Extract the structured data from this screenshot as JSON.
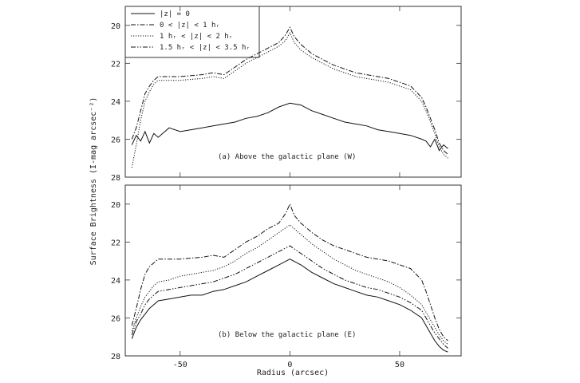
{
  "chart_data": {
    "type": "line",
    "xlabel": "Radius (arcsec)",
    "ylabel": "Surface Brightness (I-mag arcsec⁻²)",
    "xlim": [
      -75,
      78
    ],
    "x_ticks": [
      "-50",
      "0",
      "50"
    ],
    "x_tick_values": [
      -50,
      0,
      50
    ],
    "y_ticks": [
      "20",
      "22",
      "24",
      "26",
      "28"
    ],
    "y_tick_values": [
      20,
      22,
      24,
      26,
      28
    ],
    "legend_position": "top-left",
    "legend": [
      {
        "label": "|z| = 0",
        "dash": "solid"
      },
      {
        "label": "0 < |z| < 1 hᵣ",
        "dash": "dashdot"
      },
      {
        "label": "1 hᵣ < |z| < 2 hᵣ",
        "dash": "dotted"
      },
      {
        "label": "1.5 hᵣ < |z| < 3.5 hᵣ",
        "dash": "dashdotdot"
      }
    ],
    "panels": [
      {
        "label": "(a) Above the galactic plane (W)",
        "ylim": [
          19,
          28
        ],
        "series": [
          {
            "dash": "dashdot",
            "x": [
              -72,
              -70,
              -68,
              -66,
              -64,
              -62,
              -60,
              -55,
              -50,
              -45,
              -40,
              -35,
              -30,
              -25,
              -20,
              -15,
              -10,
              -5,
              -2,
              0,
              2,
              5,
              10,
              15,
              20,
              25,
              30,
              35,
              40,
              45,
              50,
              55,
              60,
              62,
              64,
              66,
              68,
              70,
              72
            ],
            "y": [
              26.0,
              25.4,
              24.5,
              23.6,
              23.2,
              22.9,
              22.7,
              22.7,
              22.7,
              22.65,
              22.6,
              22.5,
              22.6,
              22.2,
              21.8,
              21.5,
              21.2,
              20.9,
              20.5,
              20.1,
              20.6,
              21.0,
              21.5,
              21.8,
              22.1,
              22.3,
              22.5,
              22.6,
              22.7,
              22.8,
              23.0,
              23.2,
              23.8,
              24.3,
              24.9,
              25.5,
              26.2,
              26.6,
              26.8
            ]
          },
          {
            "dash": "dotted",
            "x": [
              -72,
              -70,
              -68,
              -66,
              -64,
              -62,
              -60,
              -55,
              -50,
              -45,
              -40,
              -35,
              -30,
              -25,
              -20,
              -15,
              -10,
              -5,
              -2,
              0,
              2,
              5,
              10,
              15,
              20,
              25,
              30,
              35,
              40,
              45,
              50,
              55,
              60,
              62,
              64,
              66,
              68,
              70,
              72
            ],
            "y": [
              27.5,
              26.3,
              25.0,
              24.0,
              23.5,
              23.1,
              22.9,
              22.9,
              22.9,
              22.85,
              22.8,
              22.7,
              22.8,
              22.4,
              22.0,
              21.7,
              21.4,
              21.1,
              20.8,
              20.4,
              20.9,
              21.3,
              21.7,
              22.0,
              22.3,
              22.5,
              22.7,
              22.8,
              22.9,
              23.0,
              23.2,
              23.4,
              24.0,
              24.5,
              25.1,
              25.7,
              26.4,
              26.8,
              27.0
            ]
          },
          {
            "dash": "solid",
            "x": [
              -72,
              -70,
              -68,
              -66,
              -64,
              -62,
              -60,
              -55,
              -50,
              -45,
              -40,
              -35,
              -30,
              -25,
              -20,
              -15,
              -10,
              -5,
              0,
              5,
              10,
              15,
              20,
              25,
              30,
              35,
              40,
              45,
              50,
              55,
              60,
              62,
              64,
              66,
              68,
              70,
              72
            ],
            "y": [
              26.3,
              25.8,
              26.1,
              25.6,
              26.2,
              25.7,
              25.9,
              25.4,
              25.6,
              25.5,
              25.4,
              25.3,
              25.2,
              25.1,
              24.9,
              24.8,
              24.6,
              24.3,
              24.1,
              24.2,
              24.5,
              24.7,
              24.9,
              25.1,
              25.2,
              25.3,
              25.5,
              25.6,
              25.7,
              25.8,
              26.0,
              26.1,
              26.4,
              26.0,
              26.6,
              26.3,
              26.5
            ]
          }
        ]
      },
      {
        "label": "(b) Below the galactic plane (E)",
        "ylim": [
          19,
          28
        ],
        "series": [
          {
            "dash": "dashdot",
            "x": [
              -72,
              -70,
              -68,
              -66,
              -64,
              -62,
              -60,
              -55,
              -50,
              -45,
              -40,
              -35,
              -30,
              -25,
              -20,
              -15,
              -10,
              -5,
              -2,
              0,
              2,
              5,
              10,
              15,
              20,
              25,
              30,
              35,
              40,
              45,
              50,
              55,
              60,
              62,
              64,
              66,
              68,
              70,
              72
            ],
            "y": [
              26.4,
              25.5,
              24.5,
              23.7,
              23.3,
              23.1,
              22.9,
              22.9,
              22.9,
              22.85,
              22.8,
              22.7,
              22.8,
              22.4,
              22.0,
              21.7,
              21.3,
              21.0,
              20.5,
              20.0,
              20.6,
              21.0,
              21.5,
              21.9,
              22.2,
              22.4,
              22.6,
              22.8,
              22.9,
              23.0,
              23.2,
              23.4,
              24.0,
              24.6,
              25.3,
              26.0,
              26.6,
              27.0,
              27.2
            ]
          },
          {
            "dash": "dotted",
            "x": [
              -72,
              -70,
              -68,
              -66,
              -64,
              -62,
              -60,
              -55,
              -50,
              -45,
              -40,
              -35,
              -30,
              -25,
              -20,
              -15,
              -10,
              -5,
              0,
              5,
              10,
              15,
              20,
              25,
              30,
              35,
              40,
              45,
              50,
              55,
              60,
              62,
              64,
              66,
              68,
              70,
              72
            ],
            "y": [
              26.7,
              26.0,
              25.4,
              24.9,
              24.6,
              24.3,
              24.1,
              24.0,
              23.8,
              23.7,
              23.6,
              23.5,
              23.3,
              23.0,
              22.6,
              22.3,
              21.9,
              21.5,
              21.1,
              21.6,
              22.1,
              22.5,
              22.9,
              23.2,
              23.5,
              23.7,
              23.9,
              24.1,
              24.4,
              24.8,
              25.3,
              25.7,
              26.1,
              26.5,
              26.9,
              27.2,
              27.4
            ]
          },
          {
            "dash": "dashdotdot",
            "x": [
              -72,
              -70,
              -68,
              -66,
              -64,
              -62,
              -60,
              -55,
              -50,
              -45,
              -40,
              -35,
              -30,
              -25,
              -20,
              -15,
              -10,
              -5,
              0,
              5,
              10,
              15,
              20,
              25,
              30,
              35,
              40,
              45,
              50,
              55,
              60,
              62,
              64,
              66,
              68,
              70,
              72
            ],
            "y": [
              26.9,
              26.2,
              25.8,
              25.3,
              25.0,
              24.8,
              24.6,
              24.5,
              24.4,
              24.3,
              24.2,
              24.1,
              23.9,
              23.7,
              23.4,
              23.1,
              22.8,
              22.5,
              22.2,
              22.6,
              23.0,
              23.4,
              23.7,
              24.0,
              24.2,
              24.4,
              24.5,
              24.7,
              24.9,
              25.2,
              25.6,
              26.0,
              26.4,
              26.8,
              27.1,
              27.4,
              27.6
            ]
          },
          {
            "dash": "solid",
            "x": [
              -72,
              -70,
              -68,
              -66,
              -64,
              -62,
              -60,
              -55,
              -50,
              -45,
              -40,
              -35,
              -30,
              -25,
              -20,
              -15,
              -10,
              -5,
              0,
              5,
              10,
              15,
              20,
              25,
              30,
              35,
              40,
              45,
              50,
              55,
              60,
              62,
              64,
              66,
              68,
              70,
              72
            ],
            "y": [
              27.1,
              26.5,
              26.1,
              25.8,
              25.5,
              25.3,
              25.1,
              25.0,
              24.9,
              24.8,
              24.8,
              24.6,
              24.5,
              24.3,
              24.1,
              23.8,
              23.5,
              23.2,
              22.9,
              23.2,
              23.6,
              23.9,
              24.2,
              24.4,
              24.6,
              24.8,
              24.9,
              25.1,
              25.3,
              25.6,
              26.0,
              26.4,
              26.8,
              27.2,
              27.5,
              27.7,
              27.8
            ]
          }
        ]
      }
    ]
  }
}
